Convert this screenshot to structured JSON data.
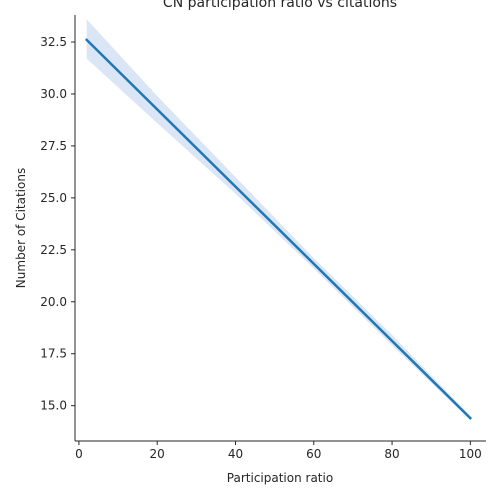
{
  "chart_data": {
    "type": "line",
    "title": "CN participation ratio vs citations",
    "xlabel": "Participation ratio",
    "ylabel": "Number of Citations",
    "xlim": [
      -1.0,
      104.0
    ],
    "ylim": [
      13.3,
      33.8
    ],
    "grid": false,
    "x_ticks": [
      0,
      20,
      40,
      60,
      80,
      100
    ],
    "x_tick_labels": [
      "0",
      "20",
      "40",
      "60",
      "80",
      "100"
    ],
    "y_ticks": [
      15.0,
      17.5,
      20.0,
      22.5,
      25.0,
      27.5,
      30.0,
      32.5
    ],
    "y_tick_labels": [
      "15.0",
      "17.5",
      "20.0",
      "22.5",
      "25.0",
      "27.5",
      "30.0",
      "32.5"
    ],
    "series": [
      {
        "type": "regression",
        "x": [
          2,
          100
        ],
        "y": [
          32.6,
          14.4
        ],
        "color": "#1f77b4"
      }
    ],
    "confidence_band": {
      "color": "#aec7e8",
      "x": [
        2,
        20,
        40,
        60,
        80,
        100
      ],
      "lower": [
        31.7,
        28.6,
        25.2,
        21.6,
        17.9,
        14.3
      ],
      "upper": [
        33.6,
        29.9,
        26.0,
        22.1,
        18.4,
        14.5
      ]
    }
  }
}
